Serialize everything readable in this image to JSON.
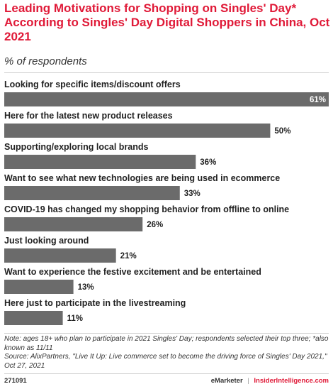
{
  "chart_data": {
    "type": "bar",
    "orientation": "horizontal",
    "title": "Leading Motivations for Shopping on Singles' Day* According to Singles' Day Digital Shoppers in China, Oct 2021",
    "subtitle": "% of respondents",
    "categories": [
      "Looking for specific items/discount offers",
      "Here for the latest new product releases",
      "Supporting/exploring local brands",
      "Want to see what new technologies are being used in ecommerce",
      "COVID-19 has changed my shopping behavior from offline to online",
      "Just looking around",
      "Want to experience the festive excitement and be entertained",
      "Here just to participate in the livestreaming"
    ],
    "values": [
      61,
      50,
      36,
      33,
      26,
      21,
      13,
      11
    ],
    "value_labels": [
      "61%",
      "50%",
      "36%",
      "33%",
      "26%",
      "21%",
      "13%",
      "11%"
    ],
    "unit": "%",
    "xlim": [
      0,
      61
    ],
    "bar_color": "#6b6b6b"
  },
  "notes": {
    "note": "Note: ages 18+ who plan to participate in 2021 Singles' Day; respondents selected their top three; *also known as 11/11",
    "source": "Source: AlixPartners, \"Live It Up: Live commerce set to become the driving force of Singles' Day 2021,\" Oct 27, 2021"
  },
  "footer": {
    "id": "271091",
    "brand": "eMarketer",
    "separator": "|",
    "site": "InsiderIntelligence.com"
  },
  "colors": {
    "title": "#e01a38",
    "bar": "#6b6b6b",
    "rule": "#cfcfcf"
  }
}
